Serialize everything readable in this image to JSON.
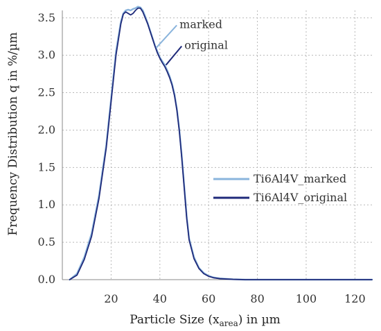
{
  "chart_data": {
    "type": "line",
    "xlabel_main": "Particle Size (x",
    "xlabel_sub": "area",
    "xlabel_end": ") in µm",
    "ylabel": "Frequency Distribution q in %/µm",
    "xlim": [
      0,
      127
    ],
    "ylim": [
      0,
      3.6
    ],
    "xticks": [
      20,
      40,
      60,
      80,
      100,
      120
    ],
    "yticks": [
      0.0,
      0.5,
      1.0,
      1.5,
      2.0,
      2.5,
      3.0,
      3.5
    ],
    "ytick_labels": [
      "0.0",
      "0.5",
      "1.0",
      "1.5",
      "2.0",
      "2.5",
      "3.0",
      "3.5"
    ],
    "grid": true,
    "legend_placement": "center-right",
    "series": [
      {
        "name": "Ti6Al4V_marked",
        "color": "#8ab4dc",
        "x": [
          3,
          6,
          9,
          12,
          15,
          18,
          20,
          22,
          24,
          25,
          26,
          27,
          28,
          29,
          30,
          31,
          32,
          33,
          34,
          35,
          36,
          37,
          38,
          39,
          40,
          41,
          42,
          43,
          44,
          45,
          46,
          47,
          48,
          49,
          50,
          51,
          52,
          54,
          56,
          58,
          60,
          62,
          65,
          70,
          75,
          80,
          90,
          100,
          110,
          120,
          127
        ],
        "y": [
          0.0,
          0.08,
          0.3,
          0.62,
          1.12,
          1.8,
          2.42,
          3.05,
          3.45,
          3.56,
          3.6,
          3.61,
          3.6,
          3.62,
          3.63,
          3.65,
          3.64,
          3.6,
          3.52,
          3.43,
          3.33,
          3.23,
          3.13,
          3.05,
          2.97,
          2.92,
          2.87,
          2.8,
          2.72,
          2.62,
          2.48,
          2.28,
          2.0,
          1.65,
          1.25,
          0.85,
          0.55,
          0.3,
          0.16,
          0.09,
          0.05,
          0.03,
          0.015,
          0.005,
          0.0,
          0.0,
          0.0,
          0.0,
          0.0,
          0.0,
          0.0
        ]
      },
      {
        "name": "Ti6Al4V_original",
        "color": "#1f2a7a",
        "x": [
          3,
          6,
          9,
          12,
          15,
          18,
          20,
          22,
          24,
          25,
          26,
          27,
          28,
          29,
          30,
          31,
          32,
          33,
          34,
          35,
          36,
          37,
          38,
          39,
          40,
          41,
          42,
          43,
          44,
          45,
          46,
          47,
          48,
          49,
          50,
          51,
          52,
          54,
          56,
          58,
          60,
          62,
          65,
          70,
          75,
          80,
          90,
          100,
          110,
          120,
          127
        ],
        "y": [
          0.0,
          0.06,
          0.27,
          0.58,
          1.08,
          1.76,
          2.38,
          3.0,
          3.42,
          3.55,
          3.58,
          3.56,
          3.54,
          3.56,
          3.6,
          3.63,
          3.63,
          3.58,
          3.5,
          3.42,
          3.32,
          3.22,
          3.12,
          3.03,
          2.96,
          2.9,
          2.85,
          2.78,
          2.7,
          2.6,
          2.46,
          2.26,
          1.98,
          1.62,
          1.22,
          0.82,
          0.53,
          0.28,
          0.15,
          0.08,
          0.045,
          0.025,
          0.012,
          0.004,
          0.0,
          0.0,
          0.0,
          0.0,
          0.0,
          0.0,
          0.0
        ]
      }
    ],
    "annotations": [
      {
        "text": "marked",
        "series": "Ti6Al4V_marked",
        "point": [
          38.5,
          3.1
        ],
        "text_pos": [
          47.5,
          3.42
        ]
      },
      {
        "text": "original",
        "series": "Ti6Al4V_original",
        "point": [
          42.5,
          2.87
        ],
        "text_pos": [
          49.5,
          3.14
        ]
      }
    ]
  }
}
